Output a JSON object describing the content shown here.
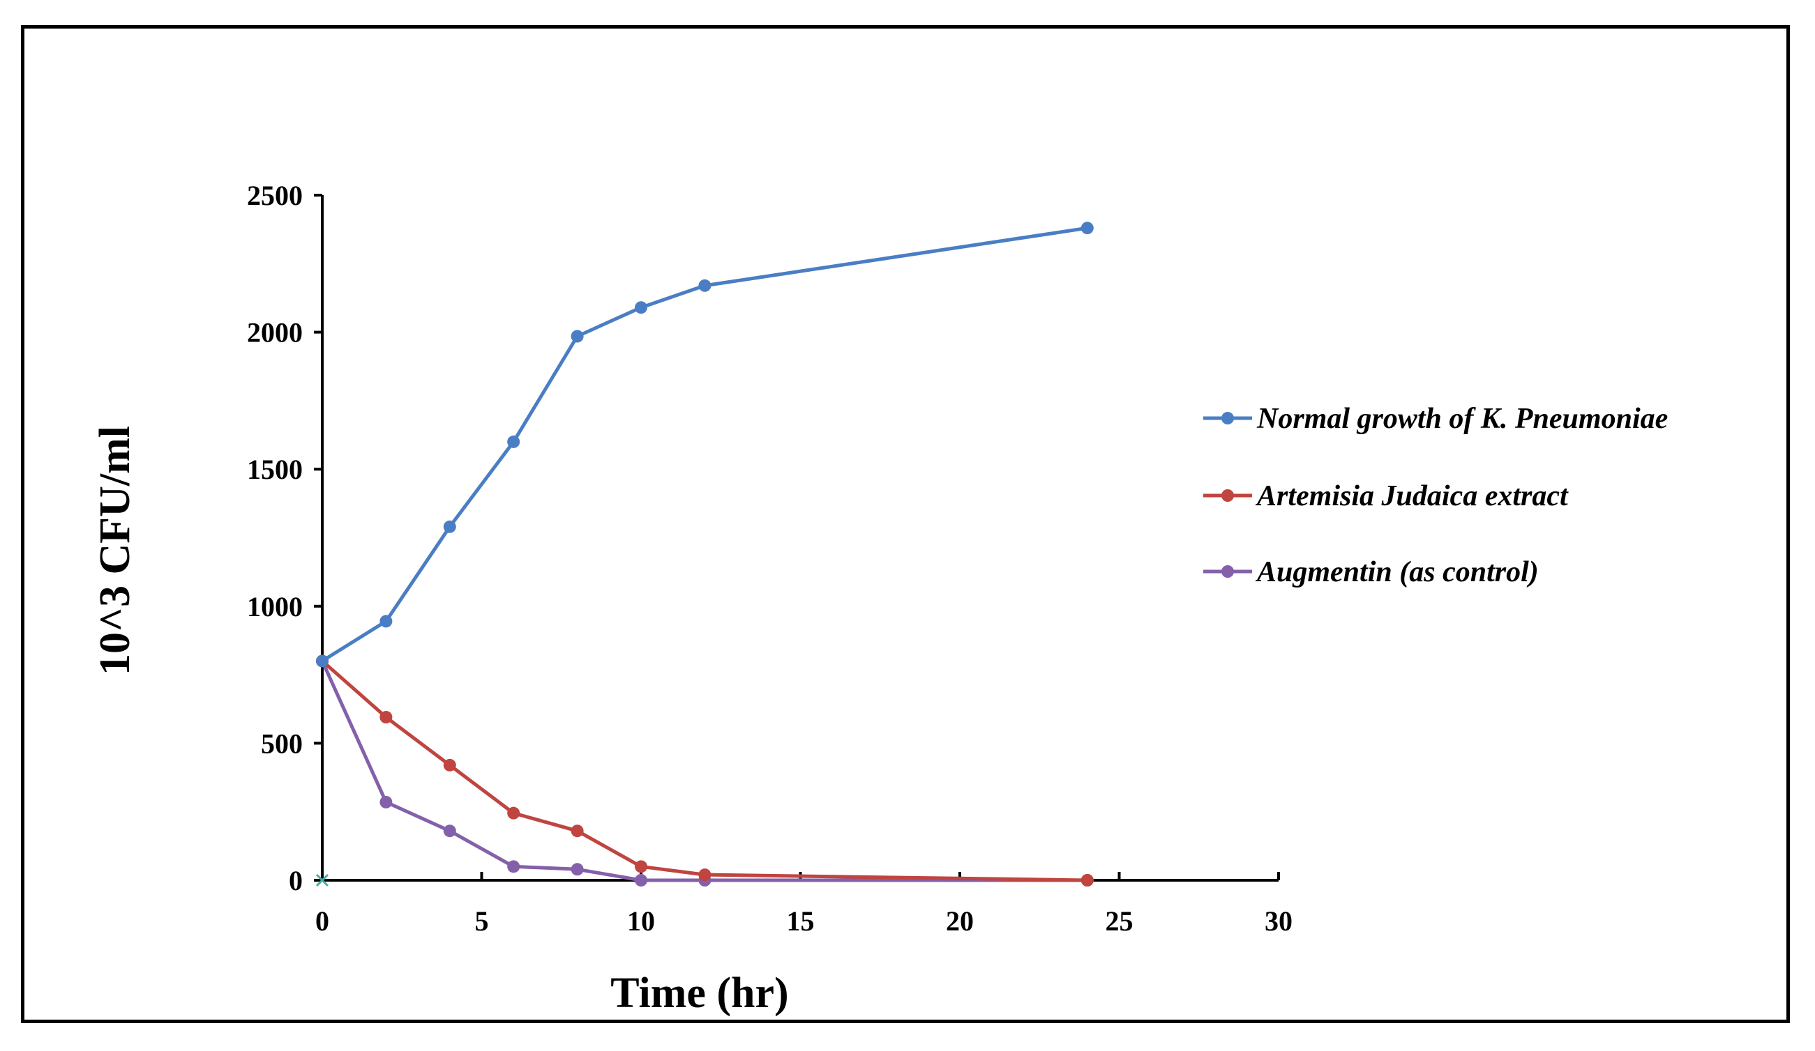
{
  "chart_data": {
    "type": "line",
    "title": "",
    "xlabel": "Time (hr)",
    "ylabel": "10^3 CFU/ml",
    "xlim": [
      0,
      30
    ],
    "ylim": [
      0,
      2500
    ],
    "xticks": [
      0,
      5,
      10,
      15,
      20,
      25,
      30
    ],
    "yticks": [
      0,
      500,
      1000,
      1500,
      2000,
      2500
    ],
    "grid": false,
    "legend_position": "right",
    "series": [
      {
        "name": "Normal growth of K. Pneumoniae",
        "color": "#4a7ec4",
        "x": [
          0,
          2,
          4,
          6,
          8,
          10,
          12,
          24
        ],
        "values": [
          800,
          945,
          1290,
          1600,
          1985,
          2090,
          2170,
          2380
        ]
      },
      {
        "name": "Artemisia Judaica extract",
        "color": "#c0443f",
        "x": [
          0,
          2,
          4,
          6,
          8,
          10,
          12,
          24
        ],
        "values": [
          800,
          595,
          420,
          245,
          180,
          50,
          20,
          0
        ]
      },
      {
        "name": "Augmentin (as control)",
        "color": "#8460aa",
        "x": [
          0,
          2,
          4,
          6,
          8,
          10,
          12,
          24
        ],
        "values": [
          800,
          285,
          180,
          50,
          40,
          0,
          0,
          0
        ]
      }
    ]
  }
}
